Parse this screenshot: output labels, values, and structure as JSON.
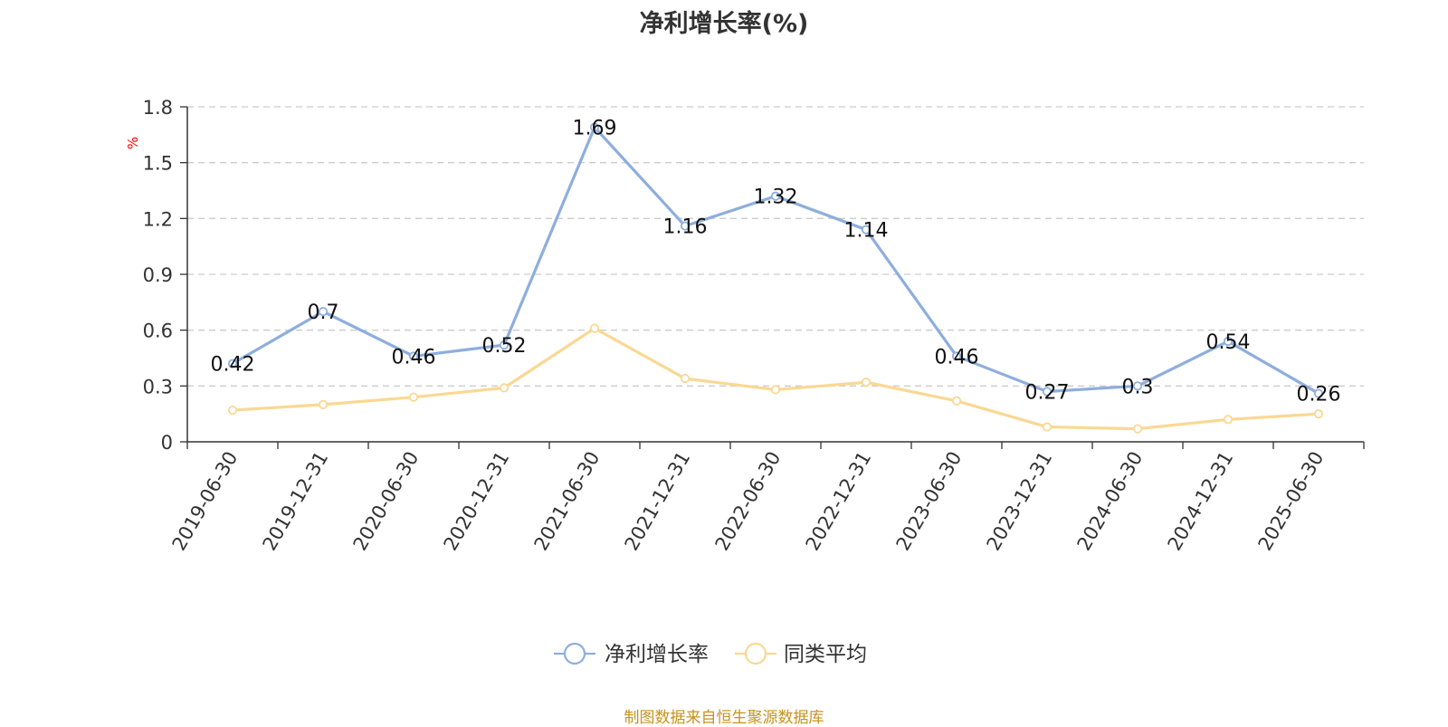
{
  "chart_data": {
    "type": "line",
    "title": "净利增长率(%)",
    "ylabel": "%",
    "xlabel": "",
    "categories": [
      "2019-06-30",
      "2019-12-31",
      "2020-06-30",
      "2020-12-31",
      "2021-06-30",
      "2021-12-31",
      "2022-06-30",
      "2022-12-31",
      "2023-06-30",
      "2023-12-31",
      "2024-06-30",
      "2024-12-31",
      "2025-06-30"
    ],
    "series": [
      {
        "name": "净利增长率",
        "color": "#8eaedc",
        "show_labels": true,
        "values": [
          0.42,
          0.7,
          0.46,
          0.52,
          1.69,
          1.16,
          1.32,
          1.14,
          0.46,
          0.27,
          0.3,
          0.54,
          0.26
        ]
      },
      {
        "name": "同类平均",
        "color": "#fad893",
        "show_labels": false,
        "values": [
          0.17,
          0.2,
          0.24,
          0.29,
          0.61,
          0.34,
          0.28,
          0.32,
          0.22,
          0.08,
          0.07,
          0.12,
          0.15
        ]
      }
    ],
    "y_ticks": [
      "0",
      "0.3",
      "0.6",
      "0.9",
      "1.2",
      "1.5",
      "1.8"
    ],
    "ylim": [
      0,
      1.8
    ],
    "grid": true,
    "legend_position": "bottom-center"
  },
  "footer": {
    "source": "制图数据来自恒生聚源数据库"
  },
  "colors": {
    "axis_label": "#ff0000",
    "grid": "#cccccc",
    "axis": "#333333"
  }
}
